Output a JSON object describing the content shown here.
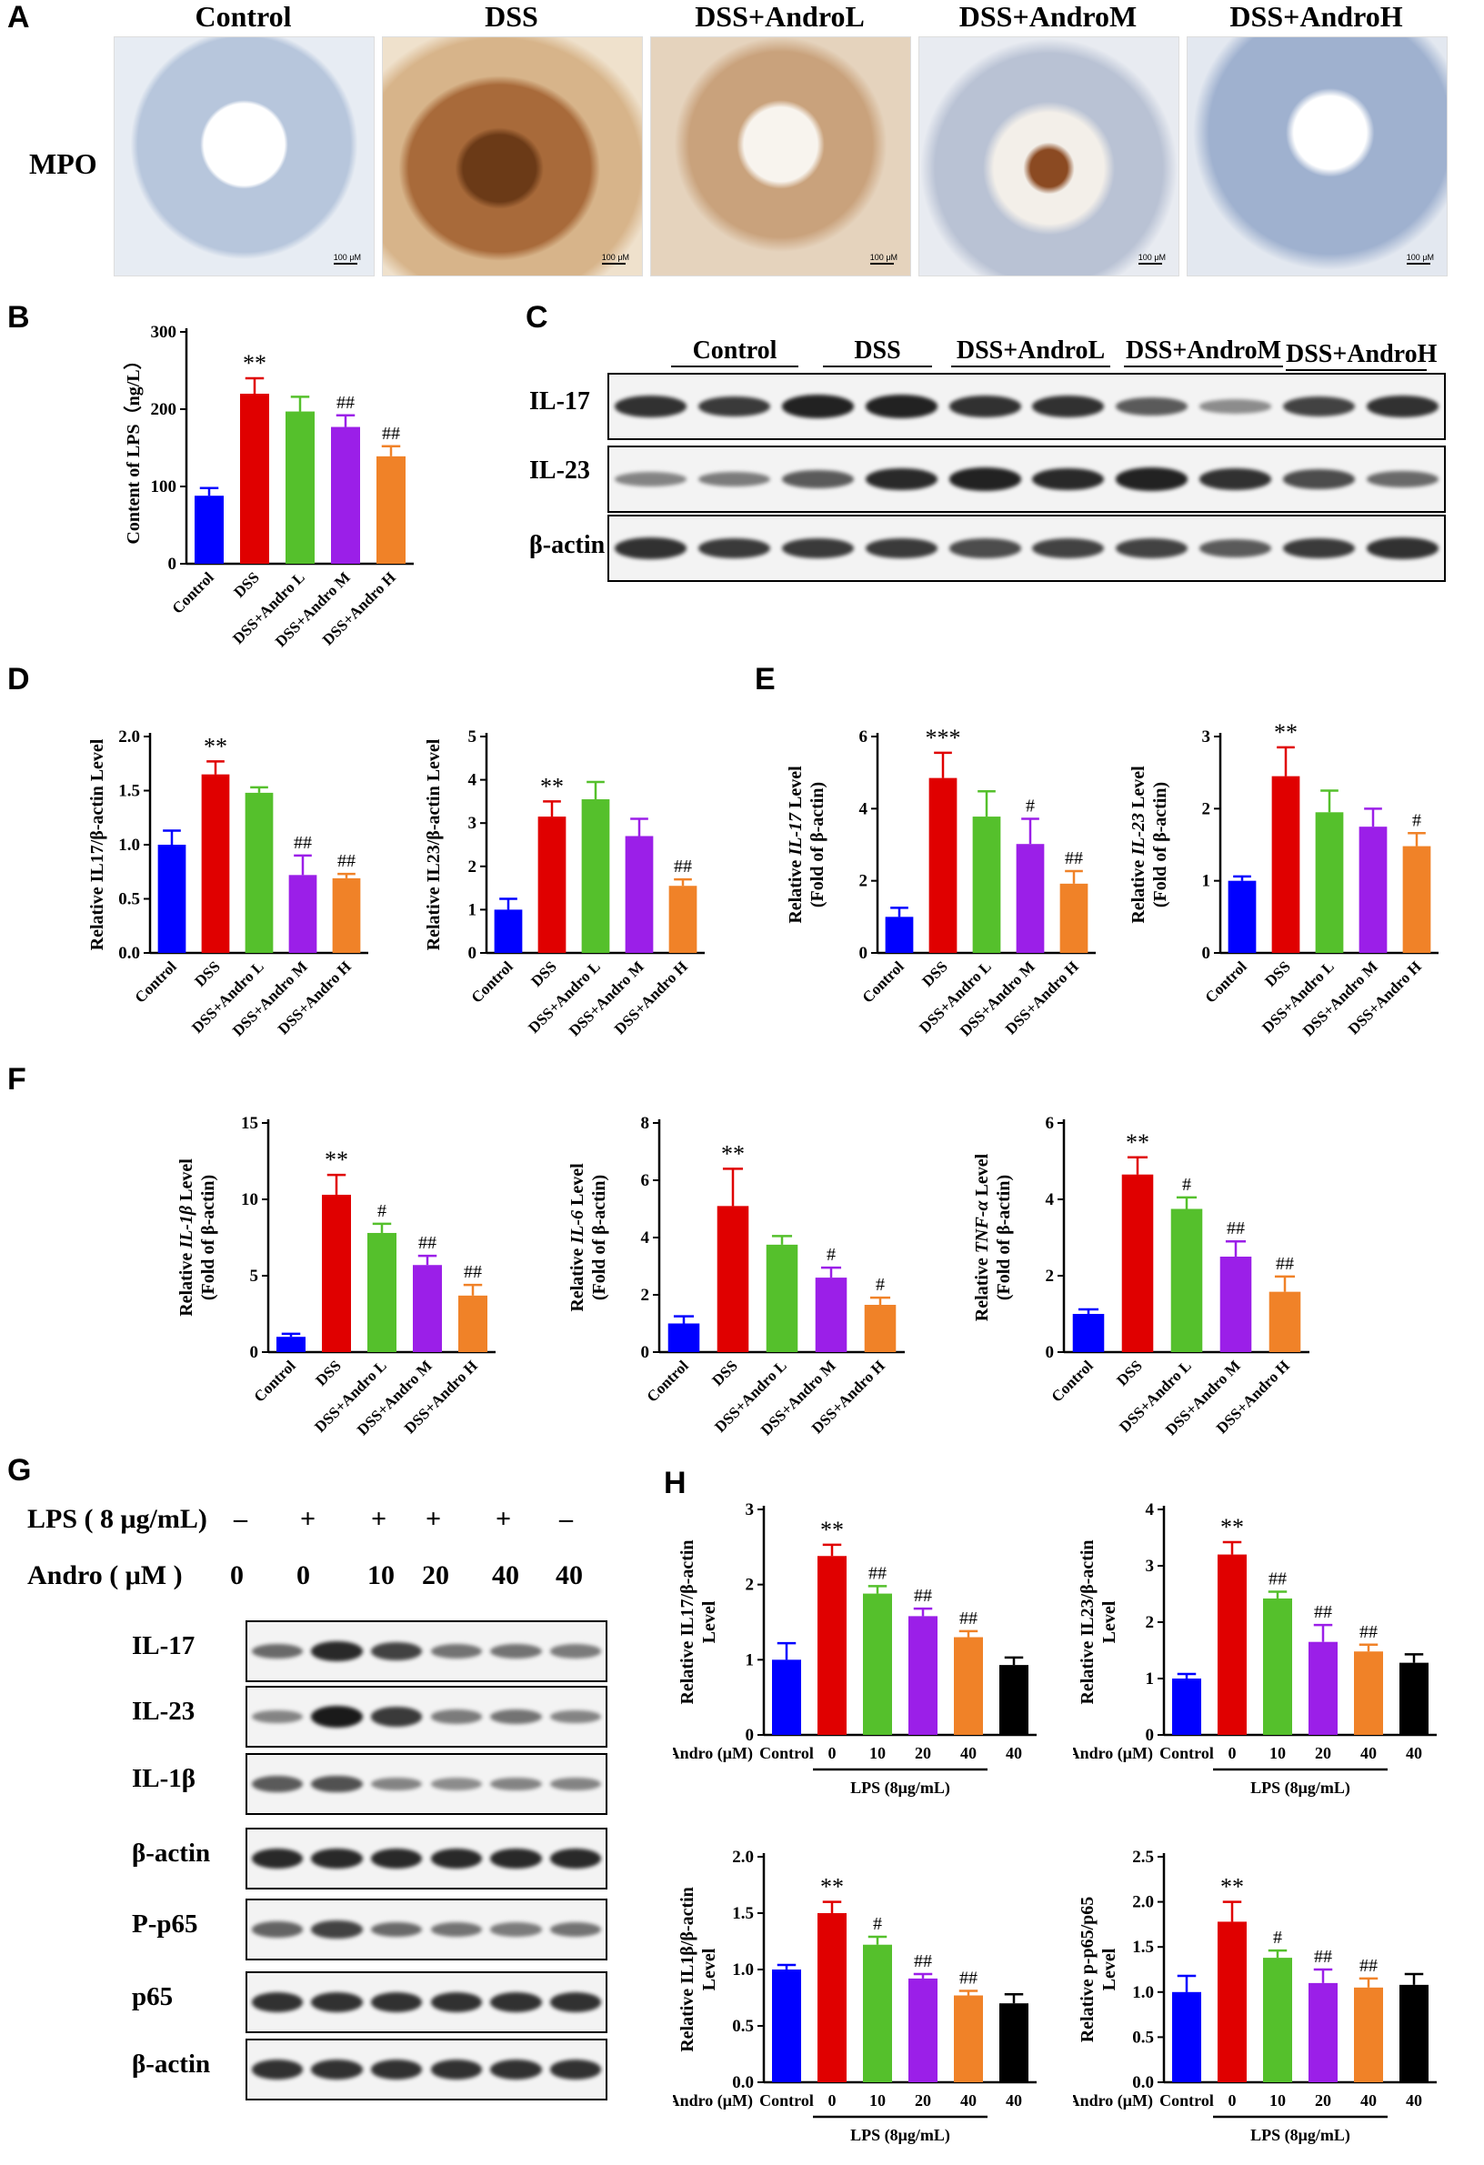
{
  "panels": {
    "A": "A",
    "B": "B",
    "C": "C",
    "D": "D",
    "E": "E",
    "F": "F",
    "G": "G",
    "H": "H"
  },
  "panelA": {
    "headers": [
      "Control",
      "DSS",
      "DSS+AndroL",
      "DSS+AndroM",
      "DSS+AndroH"
    ],
    "row_label": "MPO",
    "scale_bar": "100 μM"
  },
  "panelC": {
    "groups": [
      "Control",
      "DSS",
      "DSS+AndroL",
      "DSS+AndroM",
      "DSS+AndroH"
    ],
    "rows": [
      "IL-17",
      "IL-23",
      "β-actin"
    ]
  },
  "panelG": {
    "lps_label": "LPS ( 8 μg/mL)",
    "lps_values": [
      "–",
      "+",
      "+",
      "+",
      "+",
      "–"
    ],
    "andro_label": "Andro ( μM )",
    "andro_values": [
      "0",
      "0",
      "10",
      "20",
      "40",
      "40"
    ],
    "rows": [
      "IL-17",
      "IL-23",
      "IL-1β",
      "β-actin",
      "P-p65",
      "p65",
      "β-actin"
    ]
  },
  "colors": {
    "control": "#0000ff",
    "dss": "#e00000",
    "low": "#55c02c",
    "mid": "#9b1fe8",
    "high": "#f08228",
    "black": "#000000"
  },
  "chart_data": [
    {
      "id": "B",
      "type": "bar",
      "ylabel": "Content of LPS（ng/L）",
      "ylim": [
        0,
        300
      ],
      "yticks": [
        0,
        100,
        200,
        300
      ],
      "categories": [
        "Control",
        "DSS",
        "DSS+Andro L",
        "DSS+Andro M",
        "DSS+Andro H"
      ],
      "values": [
        88,
        220,
        197,
        177,
        139
      ],
      "errors": [
        10,
        20,
        19,
        15,
        13
      ],
      "annotations": [
        "",
        "**",
        "",
        "##",
        "##"
      ]
    },
    {
      "id": "D1",
      "type": "bar",
      "ylabel": "Relative IL17/β-actin Level",
      "ylim": [
        0,
        2.0
      ],
      "yticks": [
        "0.0",
        "0.5",
        "1.0",
        "1.5",
        "2.0"
      ],
      "categories": [
        "Control",
        "DSS",
        "DSS+Andro L",
        "DSS+Andro M",
        "DSS+Andro H"
      ],
      "values": [
        1.0,
        1.65,
        1.48,
        0.72,
        0.69
      ],
      "errors": [
        0.13,
        0.12,
        0.05,
        0.18,
        0.04
      ],
      "annotations": [
        "",
        "**",
        "",
        "##",
        "##"
      ]
    },
    {
      "id": "D2",
      "type": "bar",
      "ylabel": "Relative IL23/β-actin Level",
      "ylim": [
        0,
        5
      ],
      "yticks": [
        0,
        1,
        2,
        3,
        4,
        5
      ],
      "categories": [
        "Control",
        "DSS",
        "DSS+Andro L",
        "DSS+Andro M",
        "DSS+Andro H"
      ],
      "values": [
        1.0,
        3.15,
        3.55,
        2.7,
        1.55
      ],
      "errors": [
        0.25,
        0.35,
        0.4,
        0.4,
        0.15
      ],
      "annotations": [
        "",
        "**",
        "",
        "",
        "##"
      ]
    },
    {
      "id": "E1",
      "type": "bar",
      "ylabel_pre": "Relative ",
      "ylabel_it": "IL-17",
      "ylabel_post": " Level",
      "ylabel2": "(Fold of β-actin)",
      "ylim": [
        0,
        6
      ],
      "yticks": [
        0,
        2,
        4,
        6
      ],
      "categories": [
        "Control",
        "DSS",
        "DSS+Andro L",
        "DSS+Andro M",
        "DSS+Andro H"
      ],
      "values": [
        1.0,
        4.85,
        3.78,
        3.02,
        1.92
      ],
      "errors": [
        0.25,
        0.7,
        0.7,
        0.7,
        0.35
      ],
      "annotations": [
        "",
        "***",
        "",
        "#",
        "##"
      ]
    },
    {
      "id": "E2",
      "type": "bar",
      "ylabel_pre": "Relative ",
      "ylabel_it": "IL-23",
      "ylabel_post": " Level",
      "ylabel2": "(Fold of β-actin)",
      "ylim": [
        0,
        3
      ],
      "yticks": [
        0,
        1,
        2,
        3
      ],
      "categories": [
        "Control",
        "DSS",
        "DSS+Andro L",
        "DSS+Andro M",
        "DSS+Andro H"
      ],
      "values": [
        1.0,
        2.45,
        1.95,
        1.75,
        1.48
      ],
      "errors": [
        0.06,
        0.4,
        0.3,
        0.25,
        0.18
      ],
      "annotations": [
        "",
        "**",
        "",
        "",
        "#"
      ]
    },
    {
      "id": "F1",
      "type": "bar",
      "ylabel_pre": "Relative ",
      "ylabel_it": "IL-1β",
      "ylabel_post": " Level",
      "ylabel2": "(Fold of β-actin)",
      "ylim": [
        0,
        15
      ],
      "yticks": [
        0,
        5,
        10,
        15
      ],
      "categories": [
        "Control",
        "DSS",
        "DSS+Andro L",
        "DSS+Andro M",
        "DSS+Andro H"
      ],
      "values": [
        1.0,
        10.3,
        7.8,
        5.7,
        3.7
      ],
      "errors": [
        0.2,
        1.3,
        0.6,
        0.6,
        0.7
      ],
      "annotations": [
        "",
        "**",
        "#",
        "##",
        "##"
      ]
    },
    {
      "id": "F2",
      "type": "bar",
      "ylabel_pre": "Relative ",
      "ylabel_it": "IL-6",
      "ylabel_post": " Level",
      "ylabel2": "(Fold of β-actin)",
      "ylim": [
        0,
        8
      ],
      "yticks": [
        0,
        2,
        4,
        6,
        8
      ],
      "categories": [
        "Control",
        "DSS",
        "DSS+Andro L",
        "DSS+Andro M",
        "DSS+Andro H"
      ],
      "values": [
        1.0,
        5.1,
        3.75,
        2.6,
        1.65
      ],
      "errors": [
        0.25,
        1.3,
        0.3,
        0.35,
        0.25
      ],
      "annotations": [
        "",
        "**",
        "",
        "#",
        "#"
      ]
    },
    {
      "id": "F3",
      "type": "bar",
      "ylabel_pre": "Relative ",
      "ylabel_it": "TNF-α",
      "ylabel_post": " Level",
      "ylabel2": "(Fold of β-actin)",
      "ylim": [
        0,
        6
      ],
      "yticks": [
        0,
        2,
        4,
        6
      ],
      "categories": [
        "Control",
        "DSS",
        "DSS+Andro L",
        "DSS+Andro M",
        "DSS+Andro H"
      ],
      "values": [
        1.0,
        4.65,
        3.75,
        2.5,
        1.58
      ],
      "errors": [
        0.12,
        0.45,
        0.3,
        0.4,
        0.4
      ],
      "annotations": [
        "",
        "**",
        "#",
        "##",
        "##"
      ]
    },
    {
      "id": "H1",
      "type": "bar",
      "ylabel": "Relative IL17/β-actin",
      "ylabel2": "Level",
      "ylim": [
        0,
        3
      ],
      "yticks": [
        0,
        1,
        2,
        3
      ],
      "categories": [
        "Control",
        "0",
        "10",
        "20",
        "40",
        "40"
      ],
      "values": [
        1.0,
        2.38,
        1.88,
        1.58,
        1.3,
        0.93
      ],
      "errors": [
        0.22,
        0.15,
        0.1,
        0.1,
        0.08,
        0.1
      ],
      "annotations": [
        "",
        "**",
        "##",
        "##",
        "##",
        ""
      ],
      "xprefix": "Andro (μM)",
      "lps_label": "LPS (8μg/mL)"
    },
    {
      "id": "H2",
      "type": "bar",
      "ylabel": "Relative IL23/β-actin",
      "ylabel2": "Level",
      "ylim": [
        0,
        4
      ],
      "yticks": [
        0,
        1,
        2,
        3,
        4
      ],
      "categories": [
        "Control",
        "0",
        "10",
        "20",
        "40",
        "40"
      ],
      "values": [
        1.0,
        3.2,
        2.42,
        1.65,
        1.48,
        1.28
      ],
      "errors": [
        0.08,
        0.22,
        0.12,
        0.3,
        0.12,
        0.15
      ],
      "annotations": [
        "",
        "**",
        "##",
        "##",
        "##",
        ""
      ],
      "xprefix": "Andro (μM)",
      "lps_label": "LPS (8μg/mL)"
    },
    {
      "id": "H3",
      "type": "bar",
      "ylabel": "Relative IL1β/β-actin",
      "ylabel2": "Level",
      "ylim": [
        0,
        2.0
      ],
      "yticks": [
        "0.0",
        "0.5",
        "1.0",
        "1.5",
        "2.0"
      ],
      "categories": [
        "Control",
        "0",
        "10",
        "20",
        "40",
        "40"
      ],
      "values": [
        1.0,
        1.5,
        1.22,
        0.92,
        0.77,
        0.7
      ],
      "errors": [
        0.04,
        0.1,
        0.07,
        0.04,
        0.04,
        0.08
      ],
      "annotations": [
        "",
        "**",
        "#",
        "##",
        "##",
        ""
      ],
      "xprefix": "Andro (μM)",
      "lps_label": "LPS (8μg/mL)"
    },
    {
      "id": "H4",
      "type": "bar",
      "ylabel": "Relative p-p65/p65",
      "ylabel2": "Level",
      "ylim": [
        0,
        2.5
      ],
      "yticks": [
        "0.0",
        "0.5",
        "1.0",
        "1.5",
        "2.0",
        "2.5"
      ],
      "categories": [
        "Control",
        "0",
        "10",
        "20",
        "40",
        "40"
      ],
      "values": [
        1.0,
        1.78,
        1.38,
        1.1,
        1.05,
        1.08
      ],
      "errors": [
        0.18,
        0.22,
        0.08,
        0.15,
        0.1,
        0.12
      ],
      "annotations": [
        "",
        "**",
        "#",
        "##",
        "##",
        ""
      ],
      "xprefix": "Andro (μM)",
      "lps_label": "LPS (8μg/mL)"
    }
  ]
}
